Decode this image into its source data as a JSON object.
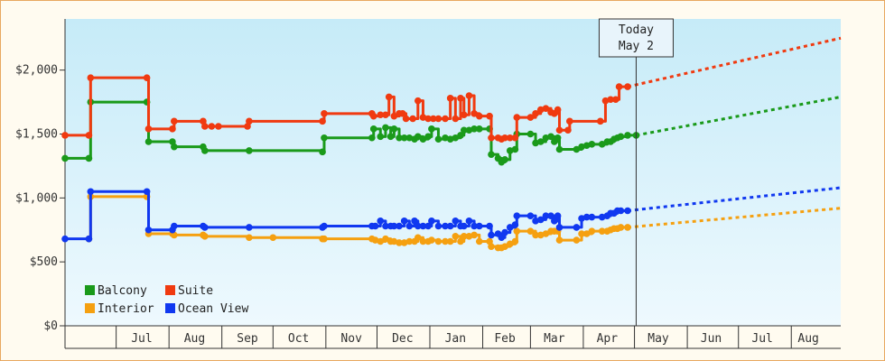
{
  "chart_data": {
    "type": "line",
    "title": "",
    "xlabel": "",
    "ylabel": "",
    "ylim": [
      0,
      2400
    ],
    "y_ticks": [
      {
        "value": 0,
        "label": "$0"
      },
      {
        "value": 500,
        "label": "$500"
      },
      {
        "value": 1000,
        "label": "$1,000"
      },
      {
        "value": 1500,
        "label": "$1,500"
      },
      {
        "value": 2000,
        "label": "$2,000"
      }
    ],
    "x_unit": "days since Jun 1",
    "xlim": [
      0,
      455
    ],
    "month_labels": [
      {
        "label": "Jul",
        "center": 45
      },
      {
        "label": "Aug",
        "center": 76
      },
      {
        "label": "Sep",
        "center": 107
      },
      {
        "label": "Oct",
        "center": 137
      },
      {
        "label": "Nov",
        "center": 168
      },
      {
        "label": "Dec",
        "center": 198
      },
      {
        "label": "Jan",
        "center": 229
      },
      {
        "label": "Feb",
        "center": 258
      },
      {
        "label": "Mar",
        "center": 287
      },
      {
        "label": "Apr",
        "center": 318
      },
      {
        "label": "May",
        "center": 348
      },
      {
        "label": "Jun",
        "center": 379
      },
      {
        "label": "Jul",
        "center": 409
      },
      {
        "label": "Aug",
        "center": 436
      }
    ],
    "month_boundaries": [
      30,
      61,
      92,
      122,
      153,
      183,
      214,
      245,
      273,
      304,
      334,
      365,
      395,
      426
    ],
    "today": {
      "x": 335,
      "line1": "Today",
      "line2": "May 2"
    },
    "legend_position": "bottom-left",
    "series": [
      {
        "name": "Balcony",
        "color": "#1a9a1a",
        "points": [
          [
            0,
            1310
          ],
          [
            14,
            1310
          ],
          [
            15,
            1750
          ],
          [
            48,
            1750
          ],
          [
            49,
            1440
          ],
          [
            63,
            1440
          ],
          [
            64,
            1400
          ],
          [
            81,
            1400
          ],
          [
            82,
            1370
          ],
          [
            108,
            1370
          ],
          [
            151,
            1360
          ],
          [
            152,
            1470
          ],
          [
            180,
            1470
          ],
          [
            181,
            1540
          ],
          [
            185,
            1480
          ],
          [
            188,
            1550
          ],
          [
            191,
            1480
          ],
          [
            193,
            1540
          ],
          [
            196,
            1470
          ],
          [
            199,
            1470
          ],
          [
            202,
            1470
          ],
          [
            205,
            1460
          ],
          [
            207,
            1480
          ],
          [
            210,
            1460
          ],
          [
            213,
            1480
          ],
          [
            215,
            1540
          ],
          [
            219,
            1460
          ],
          [
            223,
            1470
          ],
          [
            226,
            1460
          ],
          [
            229,
            1470
          ],
          [
            232,
            1490
          ],
          [
            234,
            1530
          ],
          [
            237,
            1530
          ],
          [
            240,
            1540
          ],
          [
            243,
            1540
          ],
          [
            249,
            1540
          ],
          [
            250,
            1340
          ],
          [
            254,
            1310
          ],
          [
            256,
            1280
          ],
          [
            258,
            1300
          ],
          [
            261,
            1370
          ],
          [
            264,
            1380
          ],
          [
            265,
            1500
          ],
          [
            273,
            1500
          ],
          [
            276,
            1430
          ],
          [
            279,
            1440
          ],
          [
            282,
            1470
          ],
          [
            285,
            1480
          ],
          [
            287,
            1440
          ],
          [
            289,
            1470
          ],
          [
            290,
            1380
          ],
          [
            300,
            1380
          ],
          [
            303,
            1400
          ],
          [
            306,
            1410
          ],
          [
            309,
            1420
          ],
          [
            315,
            1420
          ],
          [
            318,
            1440
          ],
          [
            320,
            1440
          ],
          [
            322,
            1460
          ],
          [
            324,
            1470
          ],
          [
            326,
            1480
          ],
          [
            330,
            1490
          ],
          [
            335,
            1490
          ]
        ],
        "forecast": [
          [
            335,
            1490
          ],
          [
            455,
            1790
          ]
        ]
      },
      {
        "name": "Suite",
        "color": "#f03a10",
        "points": [
          [
            0,
            1490
          ],
          [
            14,
            1490
          ],
          [
            15,
            1940
          ],
          [
            48,
            1940
          ],
          [
            49,
            1540
          ],
          [
            63,
            1540
          ],
          [
            64,
            1600
          ],
          [
            81,
            1600
          ],
          [
            82,
            1560
          ],
          [
            86,
            1560
          ],
          [
            90,
            1560
          ],
          [
            107,
            1560
          ],
          [
            108,
            1600
          ],
          [
            151,
            1600
          ],
          [
            152,
            1660
          ],
          [
            180,
            1660
          ],
          [
            181,
            1640
          ],
          [
            185,
            1650
          ],
          [
            188,
            1650
          ],
          [
            190,
            1790
          ],
          [
            193,
            1640
          ],
          [
            196,
            1660
          ],
          [
            198,
            1660
          ],
          [
            200,
            1620
          ],
          [
            204,
            1620
          ],
          [
            207,
            1760
          ],
          [
            210,
            1630
          ],
          [
            213,
            1620
          ],
          [
            216,
            1620
          ],
          [
            219,
            1620
          ],
          [
            223,
            1620
          ],
          [
            226,
            1780
          ],
          [
            229,
            1620
          ],
          [
            232,
            1780
          ],
          [
            234,
            1650
          ],
          [
            237,
            1800
          ],
          [
            240,
            1660
          ],
          [
            243,
            1640
          ],
          [
            249,
            1640
          ],
          [
            250,
            1470
          ],
          [
            254,
            1470
          ],
          [
            256,
            1460
          ],
          [
            258,
            1470
          ],
          [
            261,
            1470
          ],
          [
            264,
            1470
          ],
          [
            265,
            1630
          ],
          [
            273,
            1630
          ],
          [
            276,
            1660
          ],
          [
            279,
            1690
          ],
          [
            282,
            1700
          ],
          [
            285,
            1670
          ],
          [
            287,
            1660
          ],
          [
            289,
            1690
          ],
          [
            290,
            1530
          ],
          [
            295,
            1530
          ],
          [
            296,
            1600
          ],
          [
            314,
            1600
          ],
          [
            317,
            1760
          ],
          [
            320,
            1770
          ],
          [
            323,
            1770
          ],
          [
            325,
            1870
          ],
          [
            330,
            1870
          ]
        ],
        "forecast": [
          [
            330,
            1870
          ],
          [
            455,
            2250
          ]
        ]
      },
      {
        "name": "Interior",
        "color": "#f5a010",
        "points": [
          [
            14,
            680
          ],
          [
            15,
            1010
          ],
          [
            48,
            1010
          ],
          [
            49,
            720
          ],
          [
            63,
            720
          ],
          [
            64,
            710
          ],
          [
            81,
            710
          ],
          [
            82,
            700
          ],
          [
            108,
            690
          ],
          [
            122,
            690
          ],
          [
            151,
            680
          ],
          [
            152,
            680
          ],
          [
            180,
            680
          ],
          [
            182,
            670
          ],
          [
            185,
            660
          ],
          [
            188,
            680
          ],
          [
            191,
            660
          ],
          [
            193,
            660
          ],
          [
            196,
            650
          ],
          [
            199,
            650
          ],
          [
            202,
            660
          ],
          [
            205,
            660
          ],
          [
            207,
            690
          ],
          [
            210,
            660
          ],
          [
            213,
            660
          ],
          [
            215,
            670
          ],
          [
            219,
            660
          ],
          [
            223,
            660
          ],
          [
            226,
            660
          ],
          [
            229,
            700
          ],
          [
            232,
            660
          ],
          [
            234,
            700
          ],
          [
            237,
            700
          ],
          [
            240,
            710
          ],
          [
            243,
            660
          ],
          [
            249,
            660
          ],
          [
            250,
            620
          ],
          [
            254,
            610
          ],
          [
            256,
            610
          ],
          [
            258,
            620
          ],
          [
            261,
            640
          ],
          [
            264,
            660
          ],
          [
            265,
            740
          ],
          [
            273,
            740
          ],
          [
            276,
            710
          ],
          [
            279,
            710
          ],
          [
            282,
            720
          ],
          [
            285,
            740
          ],
          [
            287,
            740
          ],
          [
            289,
            740
          ],
          [
            290,
            670
          ],
          [
            300,
            670
          ],
          [
            303,
            720
          ],
          [
            306,
            720
          ],
          [
            309,
            740
          ],
          [
            315,
            740
          ],
          [
            318,
            740
          ],
          [
            320,
            750
          ],
          [
            322,
            760
          ],
          [
            324,
            760
          ],
          [
            326,
            770
          ],
          [
            330,
            770
          ]
        ],
        "forecast": [
          [
            330,
            770
          ],
          [
            455,
            920
          ]
        ]
      },
      {
        "name": "Ocean View",
        "color": "#1038f0",
        "points": [
          [
            0,
            680
          ],
          [
            14,
            680
          ],
          [
            15,
            1050
          ],
          [
            48,
            1050
          ],
          [
            49,
            750
          ],
          [
            63,
            750
          ],
          [
            64,
            780
          ],
          [
            81,
            780
          ],
          [
            82,
            770
          ],
          [
            108,
            770
          ],
          [
            151,
            770
          ],
          [
            152,
            780
          ],
          [
            180,
            780
          ],
          [
            182,
            780
          ],
          [
            185,
            820
          ],
          [
            188,
            780
          ],
          [
            191,
            780
          ],
          [
            193,
            780
          ],
          [
            196,
            780
          ],
          [
            199,
            820
          ],
          [
            202,
            780
          ],
          [
            205,
            820
          ],
          [
            207,
            780
          ],
          [
            210,
            780
          ],
          [
            213,
            780
          ],
          [
            215,
            820
          ],
          [
            219,
            780
          ],
          [
            223,
            780
          ],
          [
            226,
            780
          ],
          [
            229,
            820
          ],
          [
            232,
            780
          ],
          [
            234,
            780
          ],
          [
            237,
            820
          ],
          [
            240,
            780
          ],
          [
            243,
            780
          ],
          [
            249,
            780
          ],
          [
            250,
            710
          ],
          [
            254,
            720
          ],
          [
            256,
            690
          ],
          [
            258,
            730
          ],
          [
            261,
            770
          ],
          [
            264,
            790
          ],
          [
            265,
            860
          ],
          [
            273,
            860
          ],
          [
            276,
            820
          ],
          [
            279,
            830
          ],
          [
            282,
            860
          ],
          [
            285,
            860
          ],
          [
            287,
            820
          ],
          [
            289,
            860
          ],
          [
            290,
            770
          ],
          [
            300,
            770
          ],
          [
            303,
            840
          ],
          [
            306,
            850
          ],
          [
            309,
            850
          ],
          [
            315,
            850
          ],
          [
            318,
            860
          ],
          [
            320,
            880
          ],
          [
            322,
            880
          ],
          [
            324,
            900
          ],
          [
            326,
            900
          ],
          [
            330,
            900
          ]
        ],
        "forecast": [
          [
            330,
            900
          ],
          [
            455,
            1080
          ]
        ]
      }
    ]
  }
}
